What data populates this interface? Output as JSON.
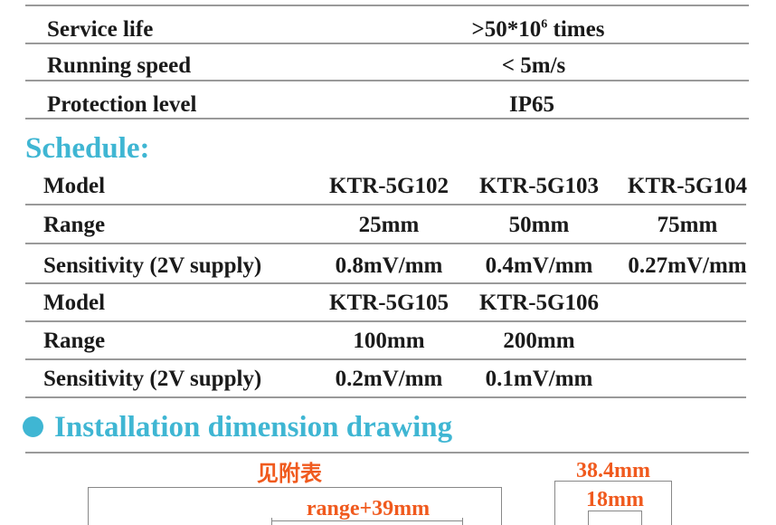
{
  "specs": [
    {
      "label": "Service life",
      "value_prefix": ">50*10",
      "value_sup": "6",
      "value_suffix": " times"
    },
    {
      "label": "Running speed",
      "value": "< 5m/s"
    },
    {
      "label": "Protection level",
      "value": "IP65"
    }
  ],
  "schedule": {
    "title": "Schedule:",
    "rows": [
      {
        "label": "Model",
        "cells": [
          "KTR-5G102",
          "KTR-5G103",
          "KTR-5G104"
        ]
      },
      {
        "label": "Range",
        "cells": [
          "25mm",
          "50mm",
          "75mm"
        ]
      },
      {
        "label": "Sensitivity (2V supply)",
        "cells": [
          "0.8mV/mm",
          "0.4mV/mm",
          "0.27mV/mm"
        ]
      },
      {
        "label": "Model",
        "cells": [
          "KTR-5G105",
          "KTR-5G106"
        ]
      },
      {
        "label": "Range",
        "cells": [
          "100mm",
          "200mm"
        ]
      },
      {
        "label": "Sensitivity (2V supply)",
        "cells": [
          "0.2mV/mm",
          "0.1mV/mm"
        ]
      }
    ]
  },
  "installation": {
    "title": "Installation dimension drawing",
    "labels": {
      "total": "见附表",
      "stroke": "range+39mm",
      "width": "38.4mm",
      "inner": "18mm"
    }
  },
  "colors": {
    "heading": "#3fb6d3",
    "dimension": "#f05a1e"
  }
}
